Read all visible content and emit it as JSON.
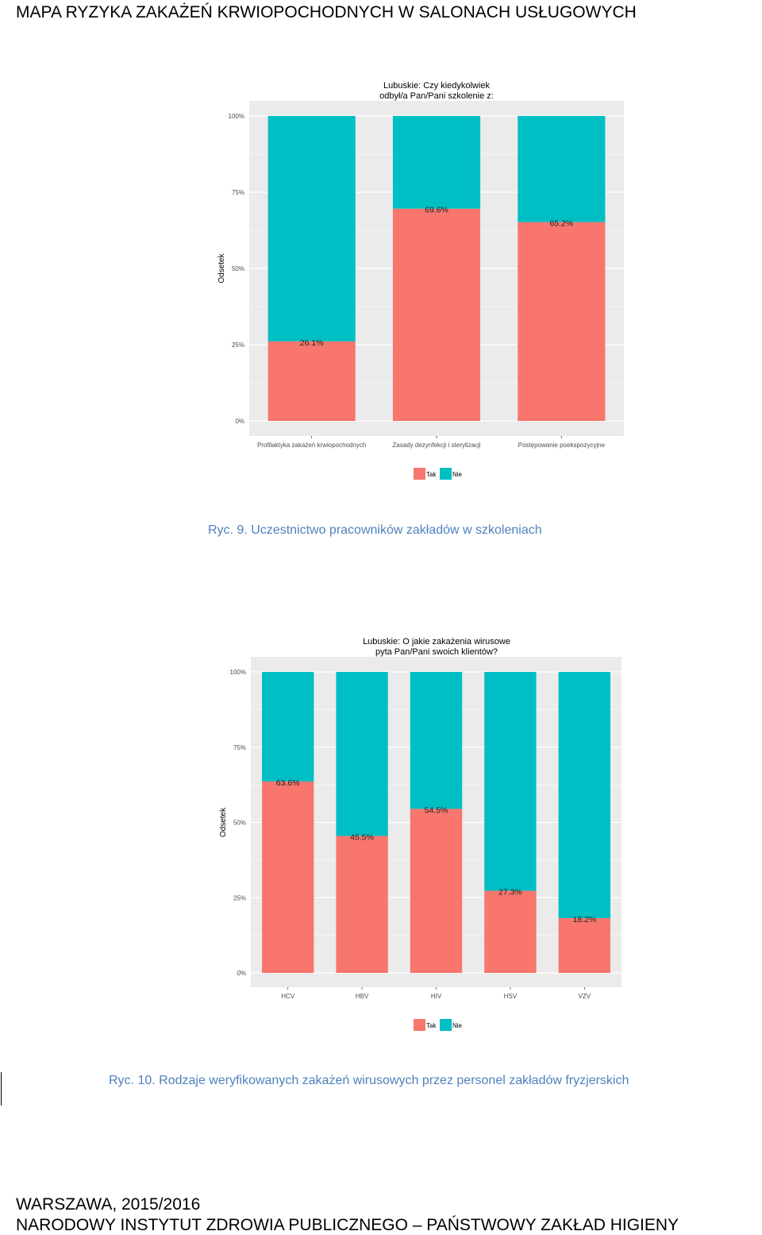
{
  "page": {
    "header": "MAPA RYZYKA ZAKAŻEŃ KRWIOPOCHODNYCH W SALONACH USŁUGOWYCH",
    "footer_line1": "WARSZAWA, 2015/2016",
    "footer_line2": "NARODOWY INSTYTUT ZDROWIA PUBLICZNEGO – PAŃSTWOWY ZAKŁAD HIGIENY"
  },
  "captions": {
    "fig9": "Ryc. 9. Uczestnictwo pracowników zakładów w szkoleniach",
    "fig10": "Ryc. 10. Rodzaje weryfikowanych zakażeń wirusowych przez personel zakładów fryzjerskich"
  },
  "colors": {
    "tak": "#f8766d",
    "nie": "#00bfc4",
    "panel": "#ebebeb",
    "grid": "#ffffff"
  },
  "chart_data": [
    {
      "type": "bar",
      "stacked": true,
      "title_lines": [
        "Lubuskie: Czy kiedykolwiek",
        "odbył/a Pan/Pani szkolenie z:"
      ],
      "ylabel": "Odsetek",
      "xlabel": "",
      "ylim": [
        0,
        100
      ],
      "yticks": [
        "0%",
        "25%",
        "50%",
        "75%",
        "100%"
      ],
      "categories": [
        "Profilaktyka zakażeń krwiopochodnych",
        "Zasady dezynfekcji i sterylizacji",
        "Postępowanie poekspozycyjne"
      ],
      "series": [
        {
          "name": "Tak",
          "values": [
            26.1,
            69.6,
            65.2
          ]
        },
        {
          "name": "Nie",
          "values": [
            73.9,
            30.4,
            34.8
          ]
        }
      ],
      "data_labels": [
        "26.1%",
        "69.6%",
        "65.2%"
      ],
      "legend_position": "bottom",
      "grid": true
    },
    {
      "type": "bar",
      "stacked": true,
      "title_lines": [
        "Lubuskie: O jakie zakażenia wirusowe",
        "pyta Pan/Pani swoich klientów?"
      ],
      "ylabel": "Odsetek",
      "xlabel": "",
      "ylim": [
        0,
        100
      ],
      "yticks": [
        "0%",
        "25%",
        "50%",
        "75%",
        "100%"
      ],
      "categories": [
        "HCV",
        "HBV",
        "HIV",
        "HSV",
        "VZV"
      ],
      "series": [
        {
          "name": "Tak",
          "values": [
            63.6,
            45.5,
            54.5,
            27.3,
            18.2
          ]
        },
        {
          "name": "Nie",
          "values": [
            36.4,
            54.5,
            45.5,
            72.7,
            81.8
          ]
        }
      ],
      "data_labels": [
        "63.6%",
        "45.5%",
        "54.5%",
        "27.3%",
        "18.2%"
      ],
      "legend_position": "bottom",
      "grid": true
    }
  ]
}
